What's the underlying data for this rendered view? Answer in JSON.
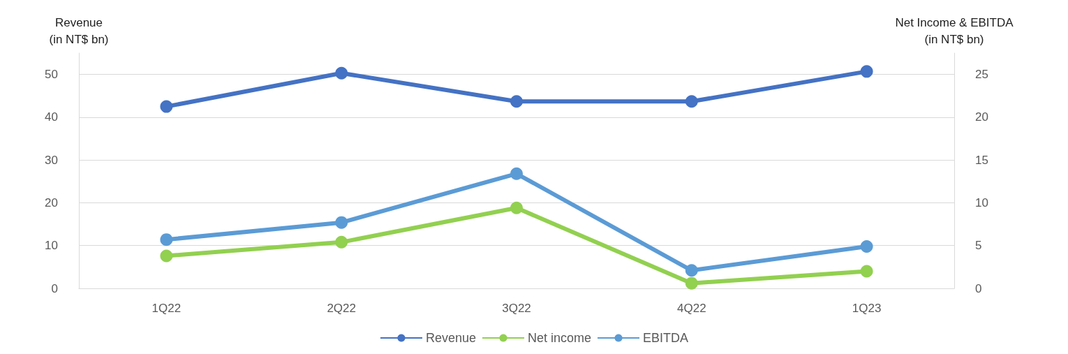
{
  "chart_data": {
    "type": "line",
    "ylabel": "Revenue\n(in NT$ bn)",
    "y2label": "Net Income & EBITDA\n(in NT$ bn)",
    "categories": [
      "1Q22",
      "2Q22",
      "3Q22",
      "4Q22",
      "1Q23"
    ],
    "series": [
      {
        "name": "Revenue",
        "color": "#4472c4",
        "values": [
          42.5,
          50.3,
          43.7,
          43.7,
          50.7
        ]
      },
      {
        "name": "Net income",
        "color": "#92d050",
        "axis": "y2",
        "values": [
          3.8,
          5.4,
          9.4,
          0.6,
          2.0
        ]
      },
      {
        "name": "EBITDA",
        "color": "#5b9bd5",
        "axis": "y2",
        "values": [
          5.7,
          7.7,
          13.4,
          2.1,
          4.9
        ]
      }
    ],
    "ylim": [
      0,
      55
    ],
    "yticks": [
      0,
      10,
      20,
      30,
      40,
      50
    ],
    "y2lim": [
      0,
      27.5
    ],
    "y2ticks": [
      0,
      5,
      10,
      15,
      20,
      25
    ],
    "grid": "y",
    "legend": "bottom",
    "marker": "circle",
    "line_style": "solid"
  }
}
